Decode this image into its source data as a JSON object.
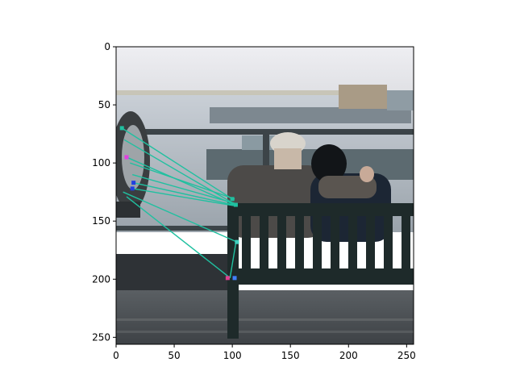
{
  "chart_data": {
    "type": "scatter",
    "title": "",
    "xlabel": "",
    "ylabel": "",
    "xlim": [
      0,
      256
    ],
    "ylim": [
      256,
      0
    ],
    "y_inverted": true,
    "xticks": [
      0,
      50,
      100,
      150,
      200,
      250
    ],
    "yticks": [
      0,
      50,
      100,
      150,
      200,
      250
    ],
    "grid": false,
    "legend": "none",
    "background": "photo: elderly couple sitting on a bench facing a harbor, coin-operated binoculars at left",
    "line_color": "#20c0a0",
    "lines": [
      {
        "from": [
          5,
          70
        ],
        "to": [
          100,
          131
        ]
      },
      {
        "from": [
          7,
          80
        ],
        "to": [
          103,
          136
        ]
      },
      {
        "from": [
          9,
          95
        ],
        "to": [
          102,
          136
        ]
      },
      {
        "from": [
          12,
          100
        ],
        "to": [
          102,
          131
        ]
      },
      {
        "from": [
          14,
          110
        ],
        "to": [
          103,
          135
        ]
      },
      {
        "from": [
          15,
          117
        ],
        "to": [
          101,
          136
        ]
      },
      {
        "from": [
          14,
          122
        ],
        "to": [
          103,
          137
        ]
      },
      {
        "from": [
          6,
          125
        ],
        "to": [
          104,
          168
        ]
      },
      {
        "from": [
          9,
          129
        ],
        "to": [
          97,
          198
        ]
      },
      {
        "from": [
          103,
          169
        ],
        "to": [
          98,
          199
        ]
      }
    ],
    "points": [
      {
        "x": 5,
        "y": 70,
        "color": "#20c0a0"
      },
      {
        "x": 9,
        "y": 95,
        "color": "#e040e0"
      },
      {
        "x": 15,
        "y": 117,
        "color": "#2040e0"
      },
      {
        "x": 14,
        "y": 122,
        "color": "#2040e0"
      },
      {
        "x": 100,
        "y": 131,
        "color": "#20c0a0"
      },
      {
        "x": 103,
        "y": 136,
        "color": "#20c0a0"
      },
      {
        "x": 104,
        "y": 168,
        "color": "#40d0c0"
      },
      {
        "x": 96,
        "y": 199,
        "color": "#e04090"
      },
      {
        "x": 102,
        "y": 199,
        "color": "#4080ff"
      }
    ]
  }
}
